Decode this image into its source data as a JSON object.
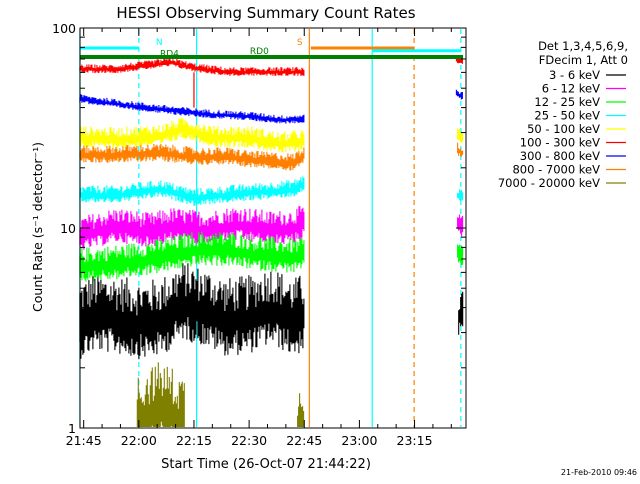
{
  "chart_data": {
    "type": "line",
    "title": "HESSI Observing Summary Count Rates",
    "xlabel": "Start Time (26-Oct-07 21:44:22)",
    "ylabel": "Count Rate (s⁻¹ detector⁻¹)",
    "yscale": "log",
    "ylim": [
      1,
      100
    ],
    "y_ticks": [
      {
        "value": 1,
        "label": "1"
      },
      {
        "value": 10,
        "label": "10"
      },
      {
        "value": 100,
        "label": "100"
      }
    ],
    "xlim_minutes": [
      21.7333,
      23.4833
    ],
    "x_ticks": [
      {
        "t": 21.75,
        "label": "21:45"
      },
      {
        "t": 22.0,
        "label": "22:00"
      },
      {
        "t": 22.25,
        "label": "22:15"
      },
      {
        "t": 22.5,
        "label": "22:30"
      },
      {
        "t": 22.75,
        "label": "22:45"
      },
      {
        "t": 23.0,
        "label": "23:00"
      },
      {
        "t": 23.25,
        "label": "23:15"
      }
    ],
    "legend_header": [
      "Det 1,3,4,5,6,9,",
      "FDecim 1, Att 0"
    ],
    "legend_position": "right",
    "series": [
      {
        "name": "3 - 6 keV",
        "color": "#000000",
        "segments": [
          {
            "start": 21.733,
            "end": 22.75,
            "points": [
              [
                21.733,
                3.2
              ],
              [
                21.8,
                3.5
              ],
              [
                21.9,
                3.4
              ],
              [
                22.0,
                3.2
              ],
              [
                22.1,
                3.3
              ],
              [
                22.2,
                4.0
              ],
              [
                22.3,
                3.7
              ],
              [
                22.4,
                3.3
              ],
              [
                22.5,
                3.4
              ],
              [
                22.6,
                3.8
              ],
              [
                22.7,
                3.3
              ],
              [
                22.75,
                3.5
              ]
            ],
            "spread": 0.18
          },
          {
            "start": 23.45,
            "end": 23.47,
            "points": [
              [
                23.45,
                3.5
              ],
              [
                23.47,
                3.6
              ]
            ],
            "spread": 0.1
          }
        ]
      },
      {
        "name": "6 - 12 keV",
        "color": "#ff00ff",
        "segments": [
          {
            "start": 21.733,
            "end": 22.75,
            "points": [
              [
                21.733,
                9.0
              ],
              [
                21.9,
                10.0
              ],
              [
                22.05,
                9.4
              ],
              [
                22.15,
                10.0
              ],
              [
                22.3,
                9.6
              ],
              [
                22.45,
                10.2
              ],
              [
                22.6,
                9.6
              ],
              [
                22.7,
                9.8
              ],
              [
                22.75,
                10.4
              ]
            ],
            "spread": 0.08
          },
          {
            "start": 23.445,
            "end": 23.47,
            "points": [
              [
                23.445,
                10.2
              ],
              [
                23.47,
                10.0
              ]
            ],
            "spread": 0.05
          }
        ]
      },
      {
        "name": "12 - 25 keV",
        "color": "#00ff00",
        "segments": [
          {
            "start": 21.733,
            "end": 22.75,
            "points": [
              [
                21.733,
                6.3
              ],
              [
                21.9,
                6.5
              ],
              [
                22.1,
                7.0
              ],
              [
                22.25,
                7.6
              ],
              [
                22.4,
                7.6
              ],
              [
                22.55,
                7.2
              ],
              [
                22.7,
                7.0
              ],
              [
                22.75,
                7.2
              ]
            ],
            "spread": 0.08
          },
          {
            "start": 23.445,
            "end": 23.47,
            "points": [
              [
                23.445,
                7.3
              ],
              [
                23.47,
                7.1
              ]
            ],
            "spread": 0.05
          }
        ]
      },
      {
        "name": "25 - 50 keV",
        "color": "#00ffff",
        "segments": [
          {
            "start": 21.733,
            "end": 22.75,
            "points": [
              [
                21.733,
                14.5
              ],
              [
                21.9,
                14.5
              ],
              [
                22.1,
                15.5
              ],
              [
                22.25,
                14.0
              ],
              [
                22.4,
                14.5
              ],
              [
                22.55,
                15.0
              ],
              [
                22.7,
                15.5
              ],
              [
                22.75,
                16.5
              ]
            ],
            "spread": 0.04
          },
          {
            "start": 23.445,
            "end": 23.47,
            "points": [
              [
                23.445,
                14.5
              ],
              [
                23.47,
                14.3
              ]
            ],
            "spread": 0.03
          }
        ]
      },
      {
        "name": "50 - 100 keV",
        "color": "#ffff00",
        "segments": [
          {
            "start": 21.733,
            "end": 22.75,
            "points": [
              [
                21.733,
                28.0
              ],
              [
                21.9,
                27.5
              ],
              [
                22.1,
                28.5
              ],
              [
                22.2,
                31.0
              ],
              [
                22.35,
                28.0
              ],
              [
                22.5,
                28.0
              ],
              [
                22.65,
                26.0
              ],
              [
                22.75,
                27.0
              ]
            ],
            "spread": 0.05
          },
          {
            "start": 23.445,
            "end": 23.47,
            "points": [
              [
                23.445,
                29.0
              ],
              [
                23.47,
                28.0
              ]
            ],
            "spread": 0.03
          }
        ]
      },
      {
        "name": "100 - 300 keV",
        "color": "#ff0000",
        "segments": [
          {
            "start": 21.733,
            "end": 22.75,
            "points": [
              [
                21.733,
                62.0
              ],
              [
                21.9,
                62.0
              ],
              [
                22.05,
                65.0
              ],
              [
                22.15,
                67.0
              ],
              [
                22.25,
                63.0
              ],
              [
                22.4,
                60.0
              ],
              [
                22.55,
                60.0
              ],
              [
                22.75,
                60.0
              ]
            ],
            "spread": 0.02
          },
          {
            "start": 23.44,
            "end": 23.47,
            "points": [
              [
                23.44,
                70.0
              ],
              [
                23.47,
                68.0
              ]
            ],
            "spread": 0.02
          }
        ]
      },
      {
        "name": "300 - 800 keV",
        "color": "#0000ff",
        "segments": [
          {
            "start": 21.733,
            "end": 22.75,
            "points": [
              [
                21.733,
                44.0
              ],
              [
                21.9,
                41.5
              ],
              [
                22.1,
                39.0
              ],
              [
                22.3,
                37.0
              ],
              [
                22.5,
                36.0
              ],
              [
                22.65,
                34.5
              ],
              [
                22.75,
                35.0
              ]
            ],
            "spread": 0.02
          },
          {
            "start": 23.44,
            "end": 23.47,
            "points": [
              [
                23.44,
                47.0
              ],
              [
                23.47,
                45.0
              ]
            ],
            "spread": 0.02
          }
        ]
      },
      {
        "name": "800 - 7000 keV",
        "color": "#ff8000",
        "segments": [
          {
            "start": 21.733,
            "end": 22.75,
            "points": [
              [
                21.733,
                23.0
              ],
              [
                21.9,
                23.0
              ],
              [
                22.1,
                23.5
              ],
              [
                22.25,
                22.5
              ],
              [
                22.4,
                22.5
              ],
              [
                22.55,
                21.5
              ],
              [
                22.7,
                21.0
              ],
              [
                22.75,
                23.0
              ]
            ],
            "spread": 0.04
          },
          {
            "start": 23.445,
            "end": 23.47,
            "points": [
              [
                23.445,
                24.5
              ],
              [
                23.47,
                23.5
              ]
            ],
            "spread": 0.03
          }
        ]
      },
      {
        "name": "7000 - 20000 keV",
        "color": "#808000",
        "segments": [
          {
            "start": 21.993,
            "end": 22.21,
            "points": [
              [
                21.993,
                1.0
              ],
              [
                22.03,
                1.1
              ],
              [
                22.1,
                1.2
              ],
              [
                22.16,
                1.1
              ],
              [
                22.21,
                1.0
              ]
            ],
            "spread": 0.2
          },
          {
            "start": 22.72,
            "end": 22.75,
            "points": [
              [
                22.72,
                1.0
              ],
              [
                22.75,
                1.1
              ]
            ],
            "spread": 0.15
          }
        ]
      }
    ],
    "flags": [
      {
        "label": "N",
        "color": "#00ffff",
        "t_start": 21.733,
        "t_end": 22.0,
        "level": 0.0
      },
      {
        "label": "S",
        "color": "#ff8000",
        "t_start": 22.78,
        "t_end": 23.25,
        "level": 0.0
      },
      {
        "label": "",
        "color": "#00ffff",
        "t_start": 23.058,
        "t_end": 23.46,
        "level": 0.3
      },
      {
        "label": "RD0",
        "color": "#008000",
        "t_start": 21.733,
        "t_end": 23.47,
        "level": 1.0
      },
      {
        "label": "RD4",
        "color": "#008000",
        "t_start": 22.25,
        "t_end": 22.25,
        "level": 1.3
      }
    ],
    "markers": [
      {
        "t": 22.25,
        "color": "#ff0000",
        "style": "solid",
        "y_top": 60,
        "y_bottom": 40
      },
      {
        "t": 21.733,
        "color": "#00ffff",
        "style": "solid",
        "y_top": 100,
        "y_bottom": 1
      },
      {
        "t": 22.0,
        "color": "#00ffff",
        "style": "dashed",
        "y_top": 100,
        "y_bottom": 1
      },
      {
        "t": 22.262,
        "color": "#00ffff",
        "style": "solid",
        "y_top": 100,
        "y_bottom": 1
      },
      {
        "t": 22.773,
        "color": "#ff8000",
        "style": "solid",
        "y_top": 100,
        "y_bottom": 1
      },
      {
        "t": 23.058,
        "color": "#00ffff",
        "style": "solid",
        "y_top": 100,
        "y_bottom": 1
      },
      {
        "t": 23.248,
        "color": "#ff8000",
        "style": "dashed",
        "y_top": 100,
        "y_bottom": 1
      },
      {
        "t": 23.46,
        "color": "#00ffff",
        "style": "dashed",
        "y_top": 100,
        "y_bottom": 1
      }
    ]
  },
  "footer": {
    "timestamp": "21-Feb-2010 09:46"
  }
}
